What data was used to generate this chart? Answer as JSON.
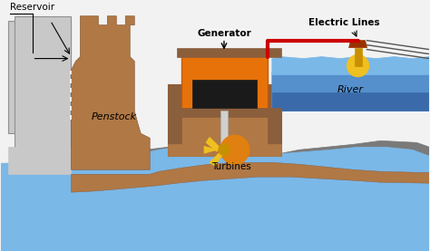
{
  "bg_color": "#f2f2f2",
  "dam_color": "#b07845",
  "dam_dark": "#8B5E3C",
  "water_blue_light": "#7ab8e8",
  "water_blue_mid": "#5590cc",
  "water_blue_dark": "#3a6aaa",
  "gray_ground": "#7a7a7a",
  "gray_mid": "#909090",
  "gray_light": "#b8b8b8",
  "generator_orange": "#e8720a",
  "generator_dark": "#c05a08",
  "black_inner": "#1a1a1a",
  "red_line": "#cc0000",
  "yellow_bright": "#f0c020",
  "yellow_dark": "#c89000",
  "red_brown": "#993300",
  "reservoir_gray": "#c8c8c8",
  "reservoir_border": "#909090",
  "white": "#ffffff",
  "labels": {
    "reservoir": "Reservoir",
    "penstock": "Penstock",
    "generator": "Generator",
    "turbines": "Turbines",
    "river": "River",
    "electric_lines": "Electric Lines"
  }
}
